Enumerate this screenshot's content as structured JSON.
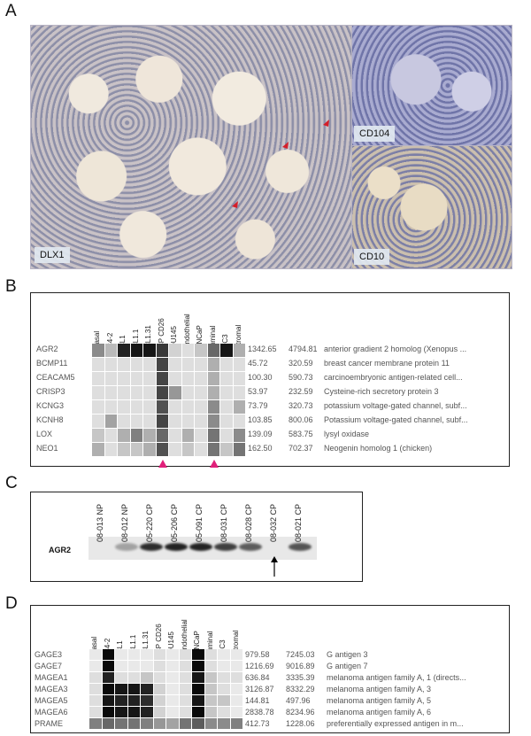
{
  "panels": {
    "a": "A",
    "b": "B",
    "c": "C",
    "d": "D"
  },
  "panel_a": {
    "main_label": "DLX1",
    "inset_top_label": "CD104",
    "inset_bottom_label": "CD10",
    "arrow_color": "#d41f2a"
  },
  "panel_b": {
    "columns": [
      "basal",
      "C4-2",
      "CL1",
      "CL1.1",
      "CL1.31",
      "CP CD26",
      "DU145",
      "endothelial",
      "LNCaP",
      "luminal",
      "PC3",
      "stromal"
    ],
    "rows": [
      {
        "gene": "AGR2",
        "v1": "1342.65",
        "v2": "4794.81",
        "desc": "anterior gradient 2 homolog (Xenopus ...",
        "levels": [
          0.45,
          0.25,
          0.9,
          0.95,
          0.95,
          0.8,
          0.15,
          0.1,
          0.2,
          0.6,
          0.95,
          0.3
        ]
      },
      {
        "gene": "BCMP11",
        "v1": "45.72",
        "v2": "320.59",
        "desc": "breast cancer membrane protein 11",
        "levels": [
          0.1,
          0.1,
          0.1,
          0.1,
          0.1,
          0.75,
          0.1,
          0.1,
          0.1,
          0.3,
          0.1,
          0.1
        ]
      },
      {
        "gene": "CEACAM5",
        "v1": "100.30",
        "v2": "590.73",
        "desc": "carcinoembryonic antigen-related cell...",
        "levels": [
          0.1,
          0.1,
          0.1,
          0.1,
          0.1,
          0.75,
          0.1,
          0.1,
          0.1,
          0.3,
          0.1,
          0.1
        ]
      },
      {
        "gene": "CRISP3",
        "v1": "53.97",
        "v2": "232.59",
        "desc": "Cysteine-rich secretory protein 3",
        "levels": [
          0.1,
          0.1,
          0.1,
          0.1,
          0.1,
          0.75,
          0.4,
          0.1,
          0.1,
          0.3,
          0.1,
          0.1
        ]
      },
      {
        "gene": "KCNG3",
        "v1": "73.79",
        "v2": "320.73",
        "desc": "potassium voltage-gated channel, subf...",
        "levels": [
          0.1,
          0.1,
          0.1,
          0.1,
          0.1,
          0.7,
          0.1,
          0.1,
          0.1,
          0.45,
          0.1,
          0.3
        ]
      },
      {
        "gene": "KCNH8",
        "v1": "103.85",
        "v2": "800.06",
        "desc": "Potassium voltage-gated channel, subf...",
        "levels": [
          0.1,
          0.35,
          0.1,
          0.1,
          0.1,
          0.75,
          0.1,
          0.1,
          0.1,
          0.45,
          0.1,
          0.1
        ]
      },
      {
        "gene": "LOX",
        "v1": "139.09",
        "v2": "583.75",
        "desc": "lysyl oxidase",
        "levels": [
          0.2,
          0.1,
          0.3,
          0.5,
          0.3,
          0.6,
          0.1,
          0.3,
          0.1,
          0.55,
          0.1,
          0.45
        ]
      },
      {
        "gene": "NEO1",
        "v1": "162.50",
        "v2": "702.37",
        "desc": "Neogenin homolog 1 (chicken)",
        "levels": [
          0.3,
          0.1,
          0.2,
          0.2,
          0.3,
          0.7,
          0.1,
          0.2,
          0.1,
          0.55,
          0.2,
          0.55
        ]
      }
    ],
    "marker_color": "#e0207a",
    "marked_columns": [
      "CP CD26",
      "luminal"
    ]
  },
  "panel_c": {
    "lanes": [
      "08-013 NP",
      "08-012 NP",
      "05-220 CP",
      "05-206 CP",
      "05-091 CP",
      "08-031 CP",
      "08-028 CP",
      "08-032 CP",
      "08-021 CP"
    ],
    "band_label": "AGR2",
    "band_intensity": [
      0.05,
      0.35,
      0.95,
      1.0,
      1.0,
      0.85,
      0.7,
      0.05,
      0.75
    ],
    "arrow_lane": "08-032 CP"
  },
  "panel_d": {
    "columns": [
      "basal",
      "C4-2",
      "CL1",
      "CL1.1",
      "CL1.31",
      "CP CD26",
      "DU145",
      "endothelial",
      "LNCaP",
      "luminal",
      "PC3",
      "stromal"
    ],
    "rows": [
      {
        "gene": "GAGE3",
        "v1": "979.58",
        "v2": "7245.03",
        "desc": "G antigen 3",
        "levels": [
          0.05,
          1.0,
          0.05,
          0.05,
          0.05,
          0.1,
          0.05,
          0.1,
          1.0,
          0.1,
          0.05,
          0.05
        ]
      },
      {
        "gene": "GAGE7",
        "v1": "1216.69",
        "v2": "9016.89",
        "desc": "G antigen 7",
        "levels": [
          0.05,
          1.0,
          0.05,
          0.05,
          0.05,
          0.1,
          0.05,
          0.1,
          1.0,
          0.1,
          0.05,
          0.05
        ]
      },
      {
        "gene": "MAGEA1",
        "v1": "636.84",
        "v2": "3335.39",
        "desc": "melanoma antigen family A, 1 (directs...",
        "levels": [
          0.1,
          0.9,
          0.1,
          0.1,
          0.2,
          0.1,
          0.05,
          0.1,
          0.95,
          0.2,
          0.1,
          0.1
        ]
      },
      {
        "gene": "MAGEA3",
        "v1": "3126.87",
        "v2": "8332.29",
        "desc": "melanoma antigen family A, 3",
        "levels": [
          0.1,
          1.0,
          0.95,
          0.95,
          0.9,
          0.15,
          0.05,
          0.1,
          1.0,
          0.2,
          0.1,
          0.05
        ]
      },
      {
        "gene": "MAGEA5",
        "v1": "144.81",
        "v2": "497.96",
        "desc": "melanoma antigen family A, 5",
        "levels": [
          0.1,
          0.95,
          0.9,
          0.9,
          0.85,
          0.15,
          0.05,
          0.1,
          0.95,
          0.2,
          0.2,
          0.05
        ]
      },
      {
        "gene": "MAGEA6",
        "v1": "2838.78",
        "v2": "8234.96",
        "desc": "melanoma antigen family A, 6",
        "levels": [
          0.1,
          1.0,
          0.95,
          0.95,
          0.9,
          0.15,
          0.05,
          0.1,
          1.0,
          0.2,
          0.1,
          0.05
        ]
      },
      {
        "gene": "PRAME",
        "v1": "412.73",
        "v2": "1228.06",
        "desc": "preferentially expressed antigen in m...",
        "levels": [
          0.5,
          0.6,
          0.55,
          0.55,
          0.5,
          0.4,
          0.35,
          0.55,
          0.65,
          0.45,
          0.45,
          0.5
        ]
      }
    ]
  }
}
